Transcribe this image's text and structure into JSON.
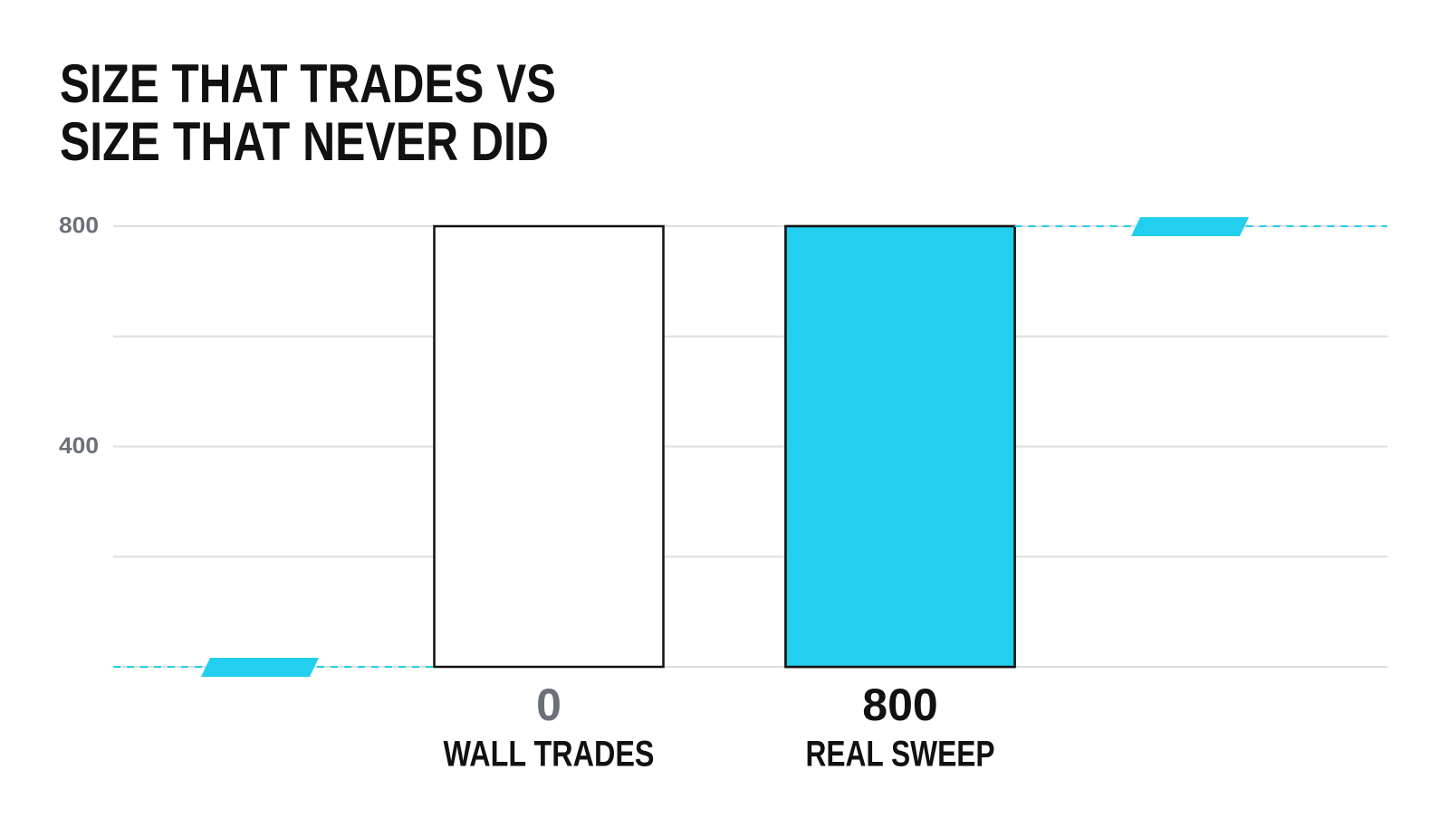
{
  "chart_data": {
    "type": "bar",
    "title": [
      "SIZE THAT TRADES VS",
      "SIZE THAT NEVER DID"
    ],
    "categories": [
      "WALL TRADES",
      "REAL SWEEP"
    ],
    "values": [
      0,
      800
    ],
    "value_label_colors": [
      "#6b7079",
      "#111111"
    ],
    "color": "#22cfee",
    "ylim": [
      0,
      800
    ],
    "yticks": [
      {
        "value": 0,
        "label": null
      },
      {
        "value": 200,
        "label": null
      },
      400,
      {
        "value": 600,
        "label": null
      },
      800
    ],
    "grid": true
  }
}
